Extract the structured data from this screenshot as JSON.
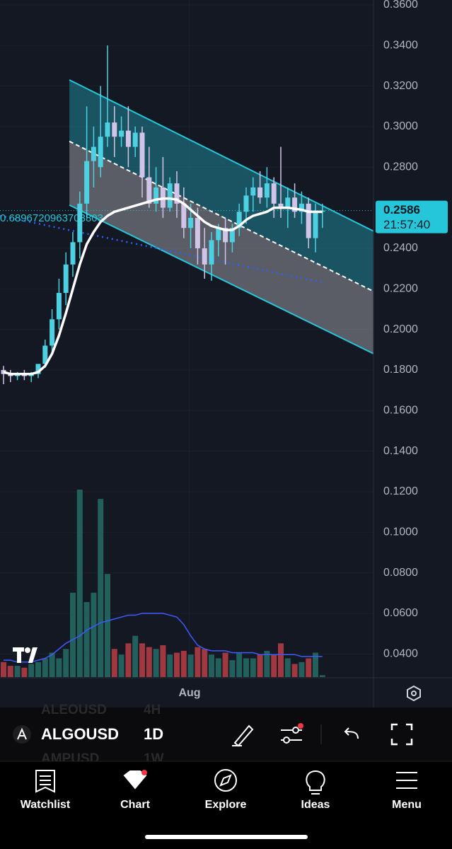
{
  "chart_data": {
    "type": "candlestick",
    "open": [
      0.18,
      0.178,
      0.177,
      0.178,
      0.177,
      0.178,
      0.183,
      0.192,
      0.205,
      0.218,
      0.232,
      0.243,
      0.262,
      0.283,
      0.28,
      0.295,
      0.302,
      0.295,
      0.298,
      0.29,
      0.297,
      0.275,
      0.262,
      0.27,
      0.26,
      0.272,
      0.262,
      0.25,
      0.255,
      0.24,
      0.232,
      0.244,
      0.25,
      0.243,
      0.25,
      0.258,
      0.266,
      0.27,
      0.265,
      0.272,
      0.262,
      0.26,
      0.265,
      0.258,
      0.262,
      0.245,
      0.258
    ],
    "high": [
      0.182,
      0.18,
      0.179,
      0.18,
      0.179,
      0.181,
      0.195,
      0.21,
      0.225,
      0.238,
      0.248,
      0.268,
      0.31,
      0.3,
      0.32,
      0.34,
      0.31,
      0.305,
      0.31,
      0.3,
      0.3,
      0.29,
      0.28,
      0.285,
      0.275,
      0.278,
      0.27,
      0.262,
      0.26,
      0.25,
      0.248,
      0.252,
      0.255,
      0.252,
      0.262,
      0.27,
      0.275,
      0.278,
      0.28,
      0.275,
      0.29,
      0.27,
      0.272,
      0.268,
      0.265,
      0.262,
      0.262
    ],
    "low": [
      0.173,
      0.174,
      0.175,
      0.175,
      0.174,
      0.176,
      0.181,
      0.188,
      0.2,
      0.212,
      0.226,
      0.235,
      0.255,
      0.27,
      0.275,
      0.29,
      0.285,
      0.29,
      0.28,
      0.285,
      0.265,
      0.26,
      0.258,
      0.255,
      0.258,
      0.255,
      0.245,
      0.24,
      0.232,
      0.225,
      0.224,
      0.236,
      0.232,
      0.238,
      0.246,
      0.252,
      0.258,
      0.262,
      0.26,
      0.255,
      0.255,
      0.25,
      0.255,
      0.252,
      0.24,
      0.238,
      0.25
    ],
    "close": [
      0.178,
      0.177,
      0.178,
      0.177,
      0.178,
      0.183,
      0.192,
      0.205,
      0.218,
      0.232,
      0.243,
      0.262,
      0.283,
      0.29,
      0.295,
      0.302,
      0.295,
      0.298,
      0.29,
      0.297,
      0.275,
      0.262,
      0.27,
      0.26,
      0.272,
      0.262,
      0.25,
      0.255,
      0.24,
      0.232,
      0.244,
      0.25,
      0.243,
      0.25,
      0.258,
      0.266,
      0.27,
      0.265,
      0.272,
      0.262,
      0.26,
      0.265,
      0.258,
      0.262,
      0.245,
      0.258,
      0.2586
    ],
    "up_color": "#4dd0e1",
    "down_color": "#d1c4e9",
    "volume": [
      8,
      6,
      6,
      5,
      7,
      8,
      10,
      13,
      10,
      15,
      45,
      100,
      40,
      45,
      95,
      55,
      15,
      12,
      18,
      22,
      18,
      16,
      15,
      17,
      12,
      13,
      14,
      12,
      16,
      15,
      12,
      10,
      13,
      9,
      13,
      10,
      10,
      12,
      14,
      12,
      18,
      10,
      7,
      8,
      10,
      13,
      1
    ],
    "volume_lim": [
      0,
      100
    ],
    "volume_up_color": "#22605c",
    "volume_down_color": "#a1373f",
    "volume_ma": [
      9,
      9,
      8,
      8,
      8,
      9,
      10,
      12,
      15,
      18,
      20,
      22,
      25,
      27,
      29,
      30,
      31,
      32,
      33,
      33,
      34,
      34,
      34,
      34,
      33,
      32,
      28,
      22,
      17,
      15,
      14,
      14,
      14,
      13,
      13,
      13,
      13,
      12,
      12,
      12,
      12,
      12,
      12,
      11,
      11,
      11,
      11
    ],
    "volume_ma_color": "#3d5afe",
    "ma": [
      0.179,
      0.178,
      0.178,
      0.178,
      0.178,
      0.179,
      0.182,
      0.188,
      0.197,
      0.208,
      0.22,
      0.232,
      0.242,
      0.248,
      0.253,
      0.256,
      0.258,
      0.259,
      0.26,
      0.261,
      0.262,
      0.263,
      0.264,
      0.2645,
      0.2645,
      0.264,
      0.262,
      0.259,
      0.256,
      0.253,
      0.251,
      0.25,
      0.249,
      0.249,
      0.251,
      0.254,
      0.256,
      0.257,
      0.258,
      0.26,
      0.26,
      0.26,
      0.2595,
      0.259,
      0.258,
      0.258,
      0.258
    ],
    "ma_color": "#ffffff",
    "channel": {
      "x": [
        9.5,
        53.4
      ],
      "upper": [
        0.323,
        0.2484
      ],
      "middle": [
        0.2927,
        0.2187
      ],
      "lower": [
        0.2613,
        0.188
      ],
      "color": "#26c6da"
    },
    "dotted": {
      "x": [
        -0.5,
        46.4
      ],
      "values": [
        0.256,
        0.2229
      ],
      "color": "#2962ff"
    },
    "dotted_label": "0.6896720963703803",
    "ylim": [
      0.0286,
      0.3624
    ],
    "yticks": [
      {
        "value": 0.36,
        "label": "0.3600"
      },
      {
        "value": 0.34,
        "label": "0.3400"
      },
      {
        "value": 0.32,
        "label": "0.3200"
      },
      {
        "value": 0.3,
        "label": "0.3000"
      },
      {
        "value": 0.28,
        "label": "0.2800"
      },
      {
        "value": 0.24,
        "label": "0.2400"
      },
      {
        "value": 0.22,
        "label": "0.2200"
      },
      {
        "value": 0.2,
        "label": "0.2000"
      },
      {
        "value": 0.18,
        "label": "0.1800"
      },
      {
        "value": 0.16,
        "label": "0.1600"
      },
      {
        "value": 0.14,
        "label": "0.1400"
      },
      {
        "value": 0.12,
        "label": "0.1200"
      },
      {
        "value": 0.1,
        "label": "0.1000"
      },
      {
        "value": 0.08,
        "label": "0.0800"
      },
      {
        "value": 0.06,
        "label": "0.0600"
      },
      {
        "value": 0.04,
        "label": "0.0400"
      }
    ],
    "xticks": [
      {
        "value": 26.8,
        "label": "Aug"
      }
    ],
    "last_price": 0.2586,
    "countdown": "21:57:40",
    "grid": true
  },
  "toolbar": {
    "symbol": "ALGOUSD",
    "interval": "1D",
    "ghost_above": [
      "ALEOUSD",
      "4H"
    ],
    "ghost_below": [
      "AMPUSD",
      "1W"
    ]
  },
  "nav": [
    "Watchlist",
    "Chart",
    "Explore",
    "Ideas",
    "Menu"
  ]
}
